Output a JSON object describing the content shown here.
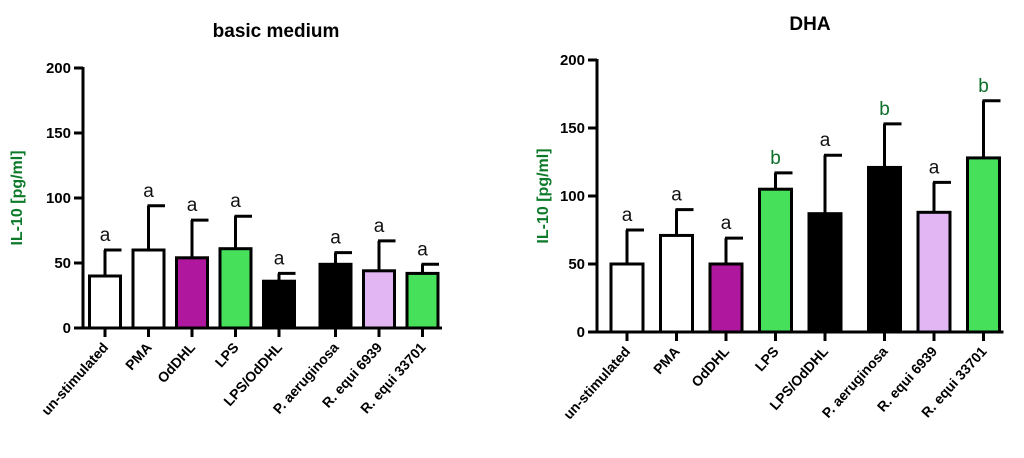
{
  "colors": {
    "white": "#ffffff",
    "magenta": "#b0179f",
    "green": "#46e05a",
    "black": "#000000",
    "lavender": "#e2b6f3",
    "ylabel": "#0d7a2a",
    "sig_a": "#111111",
    "sig_b": "#0d6e2a"
  },
  "chart_data": [
    {
      "type": "bar",
      "title": "basic medium",
      "ylabel": "IL-10 [pg/ml]",
      "xlabel": "",
      "ylim": [
        0,
        200
      ],
      "yticks": [
        "0",
        "50",
        "100",
        "150",
        "200"
      ],
      "categories": [
        "un-stimulated",
        "PMA",
        "OdDHL",
        "LPS",
        "LPS/OdDHL",
        "P. aeruginosa",
        "R. equi 6939",
        "R. equi 33701"
      ],
      "values": [
        40,
        60,
        54,
        61,
        36,
        49,
        44,
        42
      ],
      "errors": [
        20,
        34,
        29,
        25,
        6,
        9,
        23,
        7
      ],
      "bar_colors": [
        "white",
        "white",
        "magenta",
        "green",
        "black",
        "black",
        "lavender",
        "green"
      ],
      "letters": [
        "a",
        "a",
        "a",
        "a",
        "a",
        "a",
        "a",
        "a"
      ]
    },
    {
      "type": "bar",
      "title": "DHA",
      "ylabel": "IL-10 [pg/ml]",
      "xlabel": "",
      "ylim": [
        0,
        200
      ],
      "yticks": [
        "0",
        "50",
        "100",
        "150",
        "200"
      ],
      "categories": [
        "un-stimulated",
        "PMA",
        "OdDHL",
        "LPS",
        "LPS/OdDHL",
        "P. aeruginosa",
        "R. equi 6939",
        "R. equi 33701"
      ],
      "values": [
        50,
        71,
        50,
        105,
        87,
        121,
        88,
        128
      ],
      "errors": [
        25,
        19,
        19,
        12,
        43,
        32,
        22,
        42
      ],
      "bar_colors": [
        "white",
        "white",
        "magenta",
        "green",
        "black",
        "black",
        "lavender",
        "green"
      ],
      "letters": [
        "a",
        "a",
        "a",
        "b",
        "a",
        "b",
        "a",
        "b"
      ]
    }
  ]
}
